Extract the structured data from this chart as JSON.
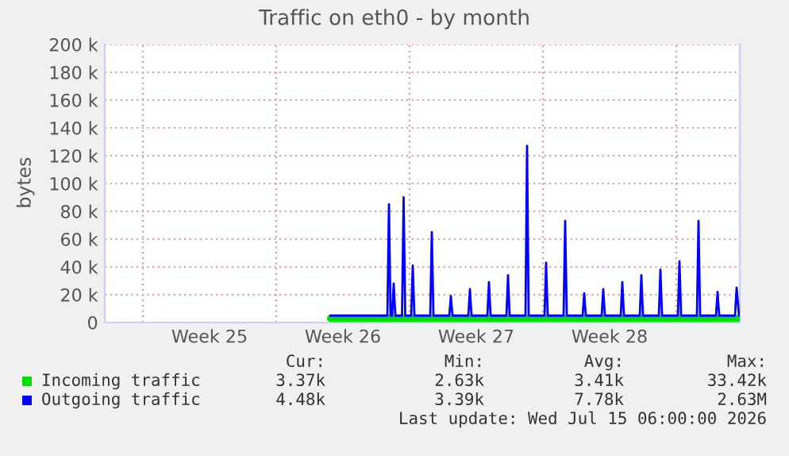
{
  "chart_data": {
    "type": "line",
    "title": "Traffic on eth0 - by month",
    "ylabel": "bytes",
    "x": [
      "2026-06-24T20:00",
      "2026-06-27T20:00",
      "2026-06-27T22:00",
      "2026-06-28T00:00",
      "2026-06-28T02:00",
      "2026-06-28T04:00",
      "2026-06-28T06:00",
      "2026-06-28T14:30",
      "2026-06-28T16:30",
      "2026-06-28T18:30",
      "2026-06-29T02:00",
      "2026-06-29T04:00",
      "2026-06-29T06:00",
      "2026-06-30T02:00",
      "2026-06-30T04:00",
      "2026-06-30T06:00",
      "2026-07-01T02:00",
      "2026-07-01T04:00",
      "2026-07-01T06:00",
      "2026-07-02T02:00",
      "2026-07-02T04:00",
      "2026-07-02T06:00",
      "2026-07-03T02:00",
      "2026-07-03T04:00",
      "2026-07-03T06:00",
      "2026-07-04T02:00",
      "2026-07-04T04:00",
      "2026-07-04T06:00",
      "2026-07-05T02:00",
      "2026-07-05T04:00",
      "2026-07-05T06:00",
      "2026-07-06T02:00",
      "2026-07-06T04:00",
      "2026-07-06T06:00",
      "2026-07-07T02:00",
      "2026-07-07T04:00",
      "2026-07-07T06:00",
      "2026-07-08T02:00",
      "2026-07-08T04:00",
      "2026-07-08T06:00",
      "2026-07-09T02:00",
      "2026-07-09T04:00",
      "2026-07-09T06:00",
      "2026-07-10T02:00",
      "2026-07-10T04:00",
      "2026-07-10T06:00",
      "2026-07-11T02:00",
      "2026-07-11T04:00",
      "2026-07-11T06:00",
      "2026-07-12T02:00",
      "2026-07-12T04:00",
      "2026-07-12T06:00",
      "2026-07-13T02:00",
      "2026-07-13T04:00",
      "2026-07-13T06:00",
      "2026-07-14T02:00",
      "2026-07-14T04:00",
      "2026-07-14T06:00",
      "2026-07-15T02:00",
      "2026-07-15T04:00",
      "2026-07-15T06:00",
      "2026-07-16T02:00",
      "2026-07-16T04:00",
      "2026-07-16T07:00"
    ],
    "series": [
      {
        "name": "Incoming traffic",
        "color": "#00e000",
        "x": [
          "2026-06-24T20:00",
          "2026-07-16T07:00"
        ],
        "values": [
          3000,
          3000
        ]
      },
      {
        "name": "Outgoing traffic",
        "color": "#0000ff",
        "values": [
          5000,
          5000,
          85000,
          5000,
          5000,
          28000,
          5000,
          5000,
          90000,
          5000,
          5000,
          41000,
          5000,
          5000,
          65000,
          5000,
          5000,
          19000,
          5000,
          5000,
          24000,
          5000,
          5000,
          29000,
          5000,
          5000,
          34000,
          5000,
          5000,
          127000,
          5000,
          5000,
          43000,
          5000,
          5000,
          73000,
          5000,
          5000,
          21000,
          5000,
          5000,
          24000,
          5000,
          5000,
          29000,
          5000,
          5000,
          34000,
          5000,
          5000,
          38000,
          5000,
          5000,
          44000,
          5000,
          5000,
          73000,
          5000,
          5000,
          22000,
          5000,
          5000,
          25000,
          5000
        ]
      }
    ],
    "xlim": [
      "2026-06-13",
      "2026-07-16T08:00"
    ],
    "xticks": [
      {
        "value": "2026-06-15",
        "label": null
      },
      {
        "value": "2026-06-18T12:00",
        "label": "Week 25"
      },
      {
        "value": "2026-06-22",
        "label": null
      },
      {
        "value": "2026-06-25T12:00",
        "label": "Week 26"
      },
      {
        "value": "2026-06-29",
        "label": null
      },
      {
        "value": "2026-07-02T12:00",
        "label": "Week 27"
      },
      {
        "value": "2026-07-06",
        "label": null
      },
      {
        "value": "2026-07-09T12:00",
        "label": "Week 28"
      },
      {
        "value": "2026-07-13",
        "label": null
      }
    ],
    "ylim": [
      0,
      200000
    ],
    "yticks": [
      0,
      {
        "value": 20000,
        "label": "20 k"
      },
      {
        "value": 40000,
        "label": "40 k"
      },
      {
        "value": 60000,
        "label": "60 k"
      },
      {
        "value": 80000,
        "label": "80 k"
      },
      {
        "value": 100000,
        "label": "100 k"
      },
      {
        "value": 120000,
        "label": "120 k"
      },
      {
        "value": 140000,
        "label": "140 k"
      },
      {
        "value": 160000,
        "label": "160 k"
      },
      {
        "value": 180000,
        "label": "180 k"
      },
      {
        "value": 200000,
        "label": "200 k"
      }
    ],
    "grid": true,
    "legend": "bottom",
    "annotations": [
      "Cur:",
      "Min:",
      "Avg:",
      "Max:",
      "3.37k",
      "2.63k",
      "3.41k",
      "33.42k",
      "4.48k",
      "3.39k",
      "7.78k",
      "2.63M",
      "Last update: Wed Jul 15 06:00:00 2026"
    ]
  }
}
